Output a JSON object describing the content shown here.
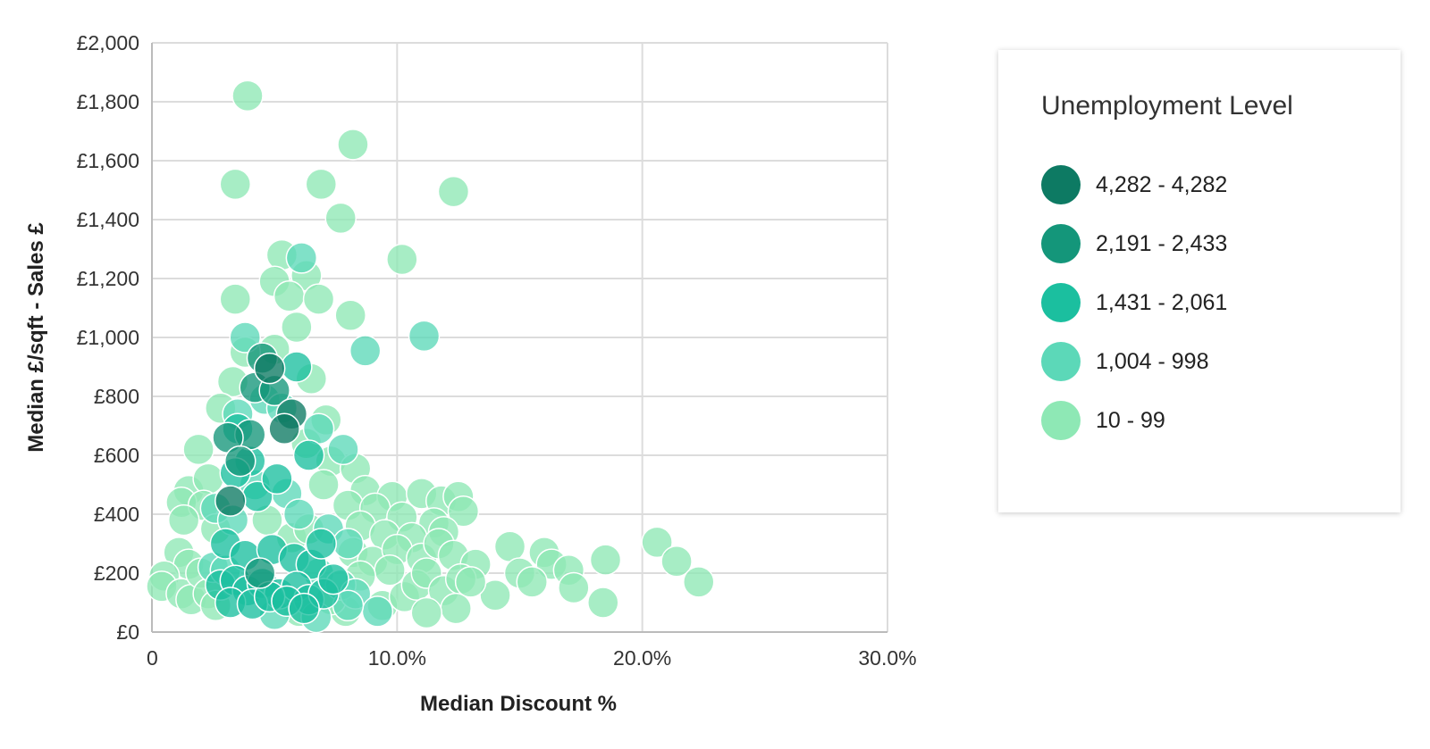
{
  "chart_data": {
    "type": "scatter",
    "title": "",
    "xlabel": "Median Discount %",
    "ylabel": "Median £/sqft - Sales £",
    "xlim": [
      0,
      30
    ],
    "ylim": [
      0,
      2000
    ],
    "x_ticks": [
      0,
      10,
      20,
      30
    ],
    "x_tick_labels": [
      "0",
      "10.0%",
      "20.0%",
      "30.0%"
    ],
    "y_ticks": [
      0,
      200,
      400,
      600,
      800,
      1000,
      1200,
      1400,
      1600,
      1800,
      2000
    ],
    "y_tick_labels": [
      "£0",
      "£200",
      "£400",
      "£600",
      "£800",
      "£1,000",
      "£1,200",
      "£1,400",
      "£1,600",
      "£1,800",
      "£2,000"
    ],
    "grid": true,
    "legend": {
      "title": "Unemployment Level",
      "position": "right",
      "items": [
        {
          "label": "4,282 - 4,282",
          "color": "#0d7a63"
        },
        {
          "label": "2,191 - 2,433",
          "color": "#14967a"
        },
        {
          "label": "1,431 - 2,061",
          "color": "#1bbf9f"
        },
        {
          "label": "1,004 - 998",
          "color": "#5cd8b8"
        },
        {
          "label": "10 - 99",
          "color": "#8ee8b5"
        }
      ]
    },
    "series": [
      {
        "name": "4,282 - 4,282",
        "color": "#0d7a63",
        "points": [
          [
            3.2,
            445
          ],
          [
            4.8,
            895
          ],
          [
            5.7,
            740
          ],
          [
            5.4,
            690
          ]
        ]
      },
      {
        "name": "2,191 - 2,433",
        "color": "#14967a",
        "points": [
          [
            4.5,
            930
          ],
          [
            4.2,
            830
          ],
          [
            4.0,
            670
          ],
          [
            3.1,
            660
          ],
          [
            3.6,
            580
          ],
          [
            5.0,
            820
          ],
          [
            4.4,
            200
          ]
        ]
      },
      {
        "name": "1,431 - 2,061",
        "color": "#1bbf9f",
        "points": [
          [
            5.9,
            900
          ],
          [
            3.5,
            690
          ],
          [
            4.0,
            580
          ],
          [
            3.4,
            540
          ],
          [
            4.3,
            460
          ],
          [
            5.1,
            520
          ],
          [
            6.4,
            600
          ],
          [
            3.0,
            300
          ],
          [
            3.8,
            260
          ],
          [
            4.9,
            280
          ],
          [
            5.8,
            250
          ],
          [
            6.5,
            230
          ],
          [
            6.9,
            300
          ],
          [
            2.8,
            160
          ],
          [
            3.4,
            175
          ],
          [
            3.9,
            140
          ],
          [
            4.5,
            165
          ],
          [
            5.2,
            130
          ],
          [
            5.9,
            155
          ],
          [
            6.4,
            110
          ],
          [
            7.0,
            130
          ],
          [
            3.2,
            100
          ],
          [
            4.1,
            95
          ],
          [
            4.8,
            120
          ],
          [
            5.5,
            105
          ],
          [
            6.2,
            80
          ],
          [
            7.4,
            180
          ]
        ]
      },
      {
        "name": "1,004 - 998",
        "color": "#5cd8b8",
        "points": [
          [
            6.1,
            1270
          ],
          [
            3.8,
            1000
          ],
          [
            11.1,
            1005
          ],
          [
            8.7,
            955
          ],
          [
            3.5,
            740
          ],
          [
            4.6,
            790
          ],
          [
            5.3,
            760
          ],
          [
            6.8,
            690
          ],
          [
            7.8,
            620
          ],
          [
            4.2,
            500
          ],
          [
            5.5,
            470
          ],
          [
            6.0,
            400
          ],
          [
            2.6,
            420
          ],
          [
            3.3,
            380
          ],
          [
            7.2,
            350
          ],
          [
            8.0,
            300
          ],
          [
            2.5,
            220
          ],
          [
            3.0,
            210
          ],
          [
            6.8,
            200
          ],
          [
            7.7,
            160
          ],
          [
            8.3,
            130
          ],
          [
            5.0,
            60
          ],
          [
            6.7,
            50
          ],
          [
            9.2,
            70
          ],
          [
            8.0,
            90
          ]
        ]
      },
      {
        "name": "10 - 99",
        "color": "#8ee8b5",
        "points": [
          [
            3.9,
            1820
          ],
          [
            8.2,
            1655
          ],
          [
            3.4,
            1520
          ],
          [
            6.9,
            1520
          ],
          [
            12.3,
            1495
          ],
          [
            7.7,
            1405
          ],
          [
            10.2,
            1265
          ],
          [
            5.3,
            1280
          ],
          [
            6.3,
            1210
          ],
          [
            5.0,
            1190
          ],
          [
            5.6,
            1140
          ],
          [
            6.8,
            1130
          ],
          [
            3.4,
            1130
          ],
          [
            8.1,
            1075
          ],
          [
            5.9,
            1035
          ],
          [
            5.0,
            960
          ],
          [
            3.8,
            950
          ],
          [
            6.5,
            860
          ],
          [
            3.3,
            850
          ],
          [
            2.8,
            760
          ],
          [
            7.1,
            720
          ],
          [
            6.3,
            640
          ],
          [
            1.9,
            620
          ],
          [
            7.3,
            580
          ],
          [
            8.3,
            555
          ],
          [
            1.5,
            480
          ],
          [
            2.3,
            520
          ],
          [
            8.7,
            480
          ],
          [
            9.8,
            460
          ],
          [
            11.0,
            470
          ],
          [
            11.8,
            445
          ],
          [
            12.5,
            460
          ],
          [
            12.7,
            410
          ],
          [
            1.2,
            440
          ],
          [
            2.1,
            430
          ],
          [
            7.0,
            500
          ],
          [
            8.0,
            430
          ],
          [
            9.1,
            420
          ],
          [
            10.2,
            390
          ],
          [
            11.5,
            370
          ],
          [
            1.3,
            380
          ],
          [
            2.6,
            350
          ],
          [
            8.5,
            360
          ],
          [
            9.5,
            330
          ],
          [
            10.6,
            320
          ],
          [
            11.9,
            340
          ],
          [
            8.2,
            270
          ],
          [
            9.0,
            240
          ],
          [
            10.0,
            280
          ],
          [
            11.0,
            250
          ],
          [
            11.7,
            300
          ],
          [
            12.3,
            260
          ],
          [
            13.2,
            230
          ],
          [
            14.6,
            290
          ],
          [
            16.0,
            270
          ],
          [
            16.3,
            230
          ],
          [
            17.0,
            210
          ],
          [
            20.6,
            305
          ],
          [
            21.4,
            240
          ],
          [
            18.5,
            245
          ],
          [
            15.0,
            200
          ],
          [
            15.5,
            170
          ],
          [
            17.2,
            150
          ],
          [
            22.3,
            170
          ],
          [
            14.0,
            125
          ],
          [
            18.4,
            100
          ],
          [
            1.1,
            270
          ],
          [
            1.5,
            230
          ],
          [
            0.5,
            190
          ],
          [
            0.4,
            155
          ],
          [
            1.2,
            130
          ],
          [
            1.6,
            110
          ],
          [
            2.0,
            200
          ],
          [
            2.3,
            130
          ],
          [
            2.6,
            90
          ],
          [
            7.9,
            70
          ],
          [
            9.4,
            90
          ],
          [
            10.3,
            120
          ],
          [
            10.8,
            160
          ],
          [
            11.2,
            200
          ],
          [
            11.9,
            140
          ],
          [
            12.6,
            180
          ],
          [
            12.4,
            80
          ],
          [
            11.2,
            65
          ],
          [
            13.0,
            170
          ],
          [
            9.7,
            210
          ],
          [
            8.5,
            190
          ],
          [
            7.3,
            110
          ],
          [
            6.0,
            70
          ],
          [
            5.7,
            320
          ],
          [
            6.4,
            350
          ],
          [
            4.7,
            380
          ]
        ]
      }
    ]
  }
}
